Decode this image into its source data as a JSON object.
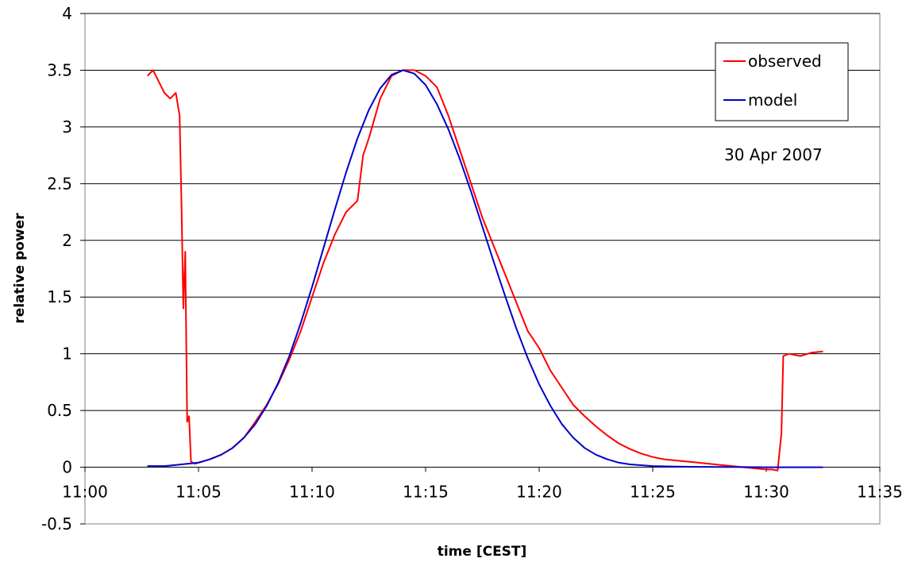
{
  "chart_data": {
    "type": "line",
    "title": "",
    "xlabel": "time [CEST]",
    "ylabel": "relative power",
    "xlim": [
      "11:00",
      "11:35"
    ],
    "ylim": [
      -0.5,
      4
    ],
    "x_ticks": [
      "11:00",
      "11:05",
      "11:10",
      "11:15",
      "11:20",
      "11:25",
      "11:30",
      "11:35"
    ],
    "y_ticks": [
      -0.5,
      0,
      0.5,
      1,
      1.5,
      2,
      2.5,
      3,
      3.5,
      4
    ],
    "y_tick_labels": [
      "-0.5",
      "0",
      "0.5",
      "1",
      "1.5",
      "2",
      "2.5",
      "3",
      "3.5",
      "4"
    ],
    "grid": "horizontal",
    "legend_position": "top-right",
    "annotation": "30 Apr 2007",
    "series": [
      {
        "name": "observed",
        "color": "#ff0000",
        "x": [
          "11:02:45",
          "11:03:00",
          "11:03:15",
          "11:03:30",
          "11:03:45",
          "11:04:00",
          "11:04:10",
          "11:04:15",
          "11:04:20",
          "11:04:25",
          "11:04:30",
          "11:04:35",
          "11:04:40",
          "11:04:50",
          "11:05:00",
          "11:05:30",
          "11:06:00",
          "11:06:30",
          "11:07:00",
          "11:07:30",
          "11:08:00",
          "11:08:30",
          "11:09:00",
          "11:09:30",
          "11:10:00",
          "11:10:30",
          "11:11:00",
          "11:11:30",
          "11:12:00",
          "11:12:15",
          "11:12:30",
          "11:13:00",
          "11:13:30",
          "11:14:00",
          "11:14:30",
          "11:15:00",
          "11:15:30",
          "11:16:00",
          "11:16:30",
          "11:17:00",
          "11:17:30",
          "11:18:00",
          "11:18:30",
          "11:19:00",
          "11:19:30",
          "11:20:00",
          "11:20:30",
          "11:21:00",
          "11:21:30",
          "11:22:00",
          "11:22:30",
          "11:23:00",
          "11:23:30",
          "11:24:00",
          "11:24:30",
          "11:25:00",
          "11:25:30",
          "11:26:00",
          "11:26:30",
          "11:27:00",
          "11:27:30",
          "11:28:00",
          "11:28:30",
          "11:29:00",
          "11:29:30",
          "11:30:00",
          "11:30:15",
          "11:30:30",
          "11:30:40",
          "11:30:45",
          "11:31:00",
          "11:31:30",
          "11:32:00",
          "11:32:30"
        ],
        "values": [
          3.45,
          3.5,
          3.4,
          3.3,
          3.25,
          3.3,
          3.1,
          2.3,
          1.4,
          1.9,
          0.4,
          0.45,
          0.05,
          0.03,
          0.04,
          0.07,
          0.11,
          0.17,
          0.26,
          0.4,
          0.55,
          0.73,
          0.95,
          1.2,
          1.5,
          1.8,
          2.05,
          2.25,
          2.35,
          2.75,
          2.9,
          3.25,
          3.45,
          3.5,
          3.5,
          3.45,
          3.35,
          3.1,
          2.8,
          2.5,
          2.2,
          1.95,
          1.7,
          1.45,
          1.2,
          1.05,
          0.85,
          0.7,
          0.55,
          0.45,
          0.36,
          0.28,
          0.21,
          0.16,
          0.12,
          0.09,
          0.07,
          0.06,
          0.05,
          0.04,
          0.03,
          0.02,
          0.01,
          0.0,
          -0.01,
          -0.02,
          -0.02,
          -0.03,
          0.3,
          0.98,
          1.0,
          0.98,
          1.01,
          1.02
        ]
      },
      {
        "name": "model",
        "color": "#0000cc",
        "x": [
          "11:02:45",
          "11:03:30",
          "11:04:00",
          "11:04:30",
          "11:05:00",
          "11:05:30",
          "11:06:00",
          "11:06:30",
          "11:07:00",
          "11:07:30",
          "11:08:00",
          "11:08:30",
          "11:09:00",
          "11:09:30",
          "11:10:00",
          "11:10:30",
          "11:11:00",
          "11:11:30",
          "11:12:00",
          "11:12:30",
          "11:13:00",
          "11:13:30",
          "11:14:00",
          "11:14:30",
          "11:15:00",
          "11:15:30",
          "11:16:00",
          "11:16:30",
          "11:17:00",
          "11:17:30",
          "11:18:00",
          "11:18:30",
          "11:19:00",
          "11:19:30",
          "11:20:00",
          "11:20:30",
          "11:21:00",
          "11:21:30",
          "11:22:00",
          "11:22:30",
          "11:23:00",
          "11:23:30",
          "11:24:00",
          "11:25:00",
          "11:26:00",
          "11:27:00",
          "11:28:00",
          "11:29:00",
          "11:30:00",
          "11:31:00",
          "11:32:30"
        ],
        "values": [
          0.01,
          0.01,
          0.02,
          0.03,
          0.04,
          0.07,
          0.11,
          0.17,
          0.26,
          0.38,
          0.54,
          0.74,
          0.98,
          1.27,
          1.59,
          1.93,
          2.27,
          2.6,
          2.9,
          3.15,
          3.34,
          3.46,
          3.5,
          3.47,
          3.37,
          3.2,
          2.98,
          2.72,
          2.43,
          2.12,
          1.81,
          1.51,
          1.22,
          0.96,
          0.73,
          0.54,
          0.38,
          0.26,
          0.17,
          0.11,
          0.07,
          0.04,
          0.025,
          0.01,
          0.005,
          0.003,
          0.002,
          0.001,
          0.0,
          0.0,
          0.0
        ]
      }
    ]
  }
}
